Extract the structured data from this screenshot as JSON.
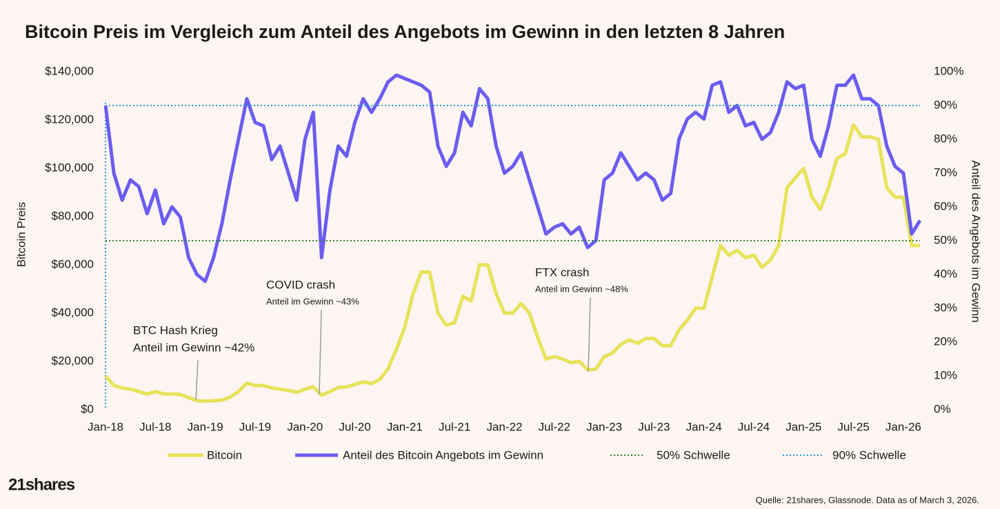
{
  "chart_data": {
    "type": "line",
    "title": "Bitcoin Preis im Vergleich zum Anteil des Angebots im Gewinn in den letzten 8 Jahren",
    "y_label": "Bitcoin Preis",
    "y2_label": "Anteil des Angebots im Gewinn",
    "x": [
      "2018-01",
      "2018-02",
      "2018-03",
      "2018-04",
      "2018-05",
      "2018-06",
      "2018-07",
      "2018-08",
      "2018-09",
      "2018-10",
      "2018-11",
      "2018-12",
      "2019-01",
      "2019-02",
      "2019-03",
      "2019-04",
      "2019-05",
      "2019-06",
      "2019-07",
      "2019-08",
      "2019-09",
      "2019-10",
      "2019-11",
      "2019-12",
      "2020-01",
      "2020-02",
      "2020-03",
      "2020-04",
      "2020-05",
      "2020-06",
      "2020-07",
      "2020-08",
      "2020-09",
      "2020-10",
      "2020-11",
      "2020-12",
      "2021-01",
      "2021-02",
      "2021-03",
      "2021-04",
      "2021-05",
      "2021-06",
      "2021-07",
      "2021-08",
      "2021-09",
      "2021-10",
      "2021-11",
      "2021-12",
      "2022-01",
      "2022-02",
      "2022-03",
      "2022-04",
      "2022-05",
      "2022-06",
      "2022-07",
      "2022-08",
      "2022-09",
      "2022-10",
      "2022-11",
      "2022-12",
      "2023-01",
      "2023-02",
      "2023-03",
      "2023-04",
      "2023-05",
      "2023-06",
      "2023-07",
      "2023-08",
      "2023-09",
      "2023-10",
      "2023-11",
      "2023-12",
      "2024-01",
      "2024-02",
      "2024-03",
      "2024-04",
      "2024-05",
      "2024-06",
      "2024-07",
      "2024-08",
      "2024-09",
      "2024-10",
      "2024-11",
      "2024-12",
      "2025-01",
      "2025-02",
      "2025-03",
      "2025-04",
      "2025-05",
      "2025-06",
      "2025-07",
      "2025-08",
      "2025-09",
      "2025-10",
      "2025-11",
      "2025-12",
      "2026-01",
      "2026-02",
      "2026-03"
    ],
    "series": [
      {
        "name": "Bitcoin",
        "color": "#e8e25a",
        "axis": "y",
        "values": [
          14000,
          10000,
          9000,
          8500,
          7500,
          6500,
          7500,
          6500,
          6500,
          6300,
          5000,
          3700,
          3500,
          3700,
          4000,
          5200,
          7500,
          11000,
          10000,
          10000,
          9000,
          8500,
          8000,
          7200,
          8500,
          9500,
          6000,
          7500,
          9200,
          9400,
          10500,
          11500,
          10800,
          12500,
          17000,
          25000,
          34000,
          48000,
          57000,
          57000,
          40000,
          35000,
          36000,
          47000,
          45000,
          60000,
          60000,
          48000,
          40000,
          40000,
          44000,
          40000,
          30000,
          21000,
          22000,
          21000,
          19500,
          20000,
          16500,
          16800,
          22000,
          23500,
          27000,
          29000,
          27500,
          29500,
          29500,
          26500,
          26500,
          33000,
          37000,
          42000,
          42000,
          55000,
          68000,
          64000,
          66000,
          63000,
          64000,
          59000,
          62000,
          68000,
          92000,
          96000,
          100000,
          88000,
          83000,
          92000,
          104000,
          106000,
          118000,
          113000,
          113000,
          112000,
          92000,
          88000,
          88000,
          68000,
          68000
        ]
      },
      {
        "name": "Anteil des Bitcoin Angebots im Gewinn",
        "color": "#6b5cf0",
        "axis": "y2",
        "values": [
          90,
          70,
          62,
          68,
          66,
          58,
          65,
          55,
          60,
          57,
          45,
          40,
          38,
          45,
          55,
          68,
          80,
          92,
          85,
          84,
          74,
          78,
          70,
          62,
          80,
          88,
          45,
          65,
          78,
          75,
          85,
          92,
          88,
          92,
          97,
          99,
          98,
          97,
          96,
          94,
          78,
          72,
          76,
          88,
          84,
          95,
          92,
          78,
          70,
          72,
          76,
          68,
          60,
          52,
          54,
          55,
          52,
          54,
          48,
          50,
          68,
          70,
          76,
          72,
          68,
          70,
          68,
          62,
          64,
          80,
          86,
          88,
          86,
          96,
          97,
          88,
          90,
          84,
          85,
          80,
          82,
          88,
          97,
          95,
          96,
          80,
          75,
          84,
          96,
          96,
          99,
          92,
          92,
          90,
          78,
          72,
          70,
          52,
          56
        ]
      }
    ],
    "thresholds": [
      {
        "name": "50% Schwelle",
        "value": 50,
        "color": "#2e7d32",
        "axis": "y2"
      },
      {
        "name": "90% Schwelle",
        "value": 90,
        "color": "#1e9bd7",
        "axis": "y2"
      }
    ],
    "annotations": [
      {
        "title": "BTC Hash Krieg",
        "text": "Anteil im Gewinn ~42%"
      },
      {
        "title": "COVID crash",
        "text": "Anteil im Gewinn ~43%"
      },
      {
        "title": "FTX crash",
        "text": "Anteil im Gewinn ~48%"
      }
    ],
    "xlim": [
      "2018-01",
      "2026-03"
    ],
    "xticks": [
      {
        "value": "2018-01",
        "label": "Jan-18"
      },
      {
        "value": "2018-07",
        "label": "Jul-18"
      },
      {
        "value": "2019-01",
        "label": "Jan-19"
      },
      {
        "value": "2019-07",
        "label": "Jul-19"
      },
      {
        "value": "2020-01",
        "label": "Jan-20"
      },
      {
        "value": "2020-07",
        "label": "Jul-20"
      },
      {
        "value": "2021-01",
        "label": "Jan-21"
      },
      {
        "value": "2021-07",
        "label": "Jul-21"
      },
      {
        "value": "2022-01",
        "label": "Jan-22"
      },
      {
        "value": "2022-07",
        "label": "Jul-22"
      },
      {
        "value": "2023-01",
        "label": "Jan-23"
      },
      {
        "value": "2023-07",
        "label": "Jul-23"
      },
      {
        "value": "2024-01",
        "label": "Jan-24"
      },
      {
        "value": "2024-07",
        "label": "Jul-24"
      },
      {
        "value": "2025-01",
        "label": "Jan-25"
      },
      {
        "value": "2025-07",
        "label": "Jul-25"
      },
      {
        "value": "2026-01",
        "label": "Jan-26"
      }
    ],
    "ylim": [
      0,
      140000
    ],
    "yticks": [
      {
        "value": 0,
        "label": "$0"
      },
      {
        "value": 20000,
        "label": "$20,000"
      },
      {
        "value": 40000,
        "label": "$40,000"
      },
      {
        "value": 60000,
        "label": "$60,000"
      },
      {
        "value": 80000,
        "label": "$80,000"
      },
      {
        "value": 100000,
        "label": "$100,000"
      },
      {
        "value": 120000,
        "label": "$120,000"
      },
      {
        "value": 140000,
        "label": "$140,000"
      }
    ],
    "y2lim": [
      0,
      100
    ],
    "y2ticks": [
      {
        "value": 0,
        "label": "0%"
      },
      {
        "value": 10,
        "label": "10%"
      },
      {
        "value": 20,
        "label": "20%"
      },
      {
        "value": 30,
        "label": "30%"
      },
      {
        "value": 40,
        "label": "40%"
      },
      {
        "value": 50,
        "label": "50%"
      },
      {
        "value": 60,
        "label": "60%"
      },
      {
        "value": 70,
        "label": "70%"
      },
      {
        "value": 80,
        "label": "80%"
      },
      {
        "value": 90,
        "label": "90%"
      },
      {
        "value": 100,
        "label": "100%"
      }
    ],
    "logo": "21shares",
    "source": "Quelle: 21shares, Glassnode. Data as of March 3, 2026."
  }
}
